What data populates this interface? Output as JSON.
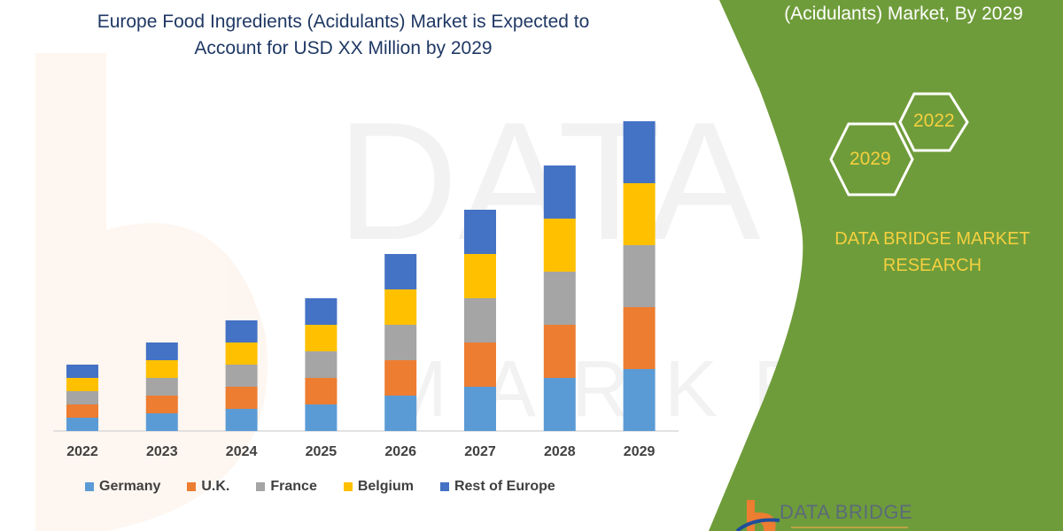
{
  "header": {
    "title_line1": "Europe Food Ingredients (Acidulants) Market is Expected to",
    "title_line2": "Account for USD XX Million by 2029"
  },
  "side_panel": {
    "title_visible_line": "(Acidulants) Market, By 2029",
    "hex_years": [
      "2022",
      "2029"
    ],
    "brand_line1": "DATA BRIDGE MARKET",
    "brand_line2": "RESEARCH",
    "logo_text": "DATA BRIDGE",
    "panel_color": "#6f9c3a",
    "brand_text_color": "#f4d03f"
  },
  "chart_data": {
    "type": "bar",
    "stacked": true,
    "title": "Europe Food Ingredients (Acidulants) Market is Expected to Account for USD XX Million by 2029",
    "xlabel": "",
    "ylabel": "",
    "y_axis_shown": false,
    "grid": false,
    "legend_position": "bottom",
    "categories": [
      "2022",
      "2023",
      "2024",
      "2025",
      "2026",
      "2027",
      "2028",
      "2029"
    ],
    "ylim": [
      0,
      360
    ],
    "series": [
      {
        "name": "Germany",
        "color": "#5b9bd5",
        "values": [
          15,
          20,
          25,
          30,
          40,
          50,
          60,
          70
        ]
      },
      {
        "name": "U.K.",
        "color": "#ed7d31",
        "values": [
          15,
          20,
          25,
          30,
          40,
          50,
          60,
          70
        ]
      },
      {
        "name": "France",
        "color": "#a5a5a5",
        "values": [
          15,
          20,
          25,
          30,
          40,
          50,
          60,
          70
        ]
      },
      {
        "name": "Belgium",
        "color": "#ffc000",
        "values": [
          15,
          20,
          25,
          30,
          40,
          50,
          60,
          70
        ]
      },
      {
        "name": "Rest of Europe",
        "color": "#4472c4",
        "values": [
          15,
          20,
          25,
          30,
          40,
          50,
          60,
          70
        ]
      }
    ]
  }
}
